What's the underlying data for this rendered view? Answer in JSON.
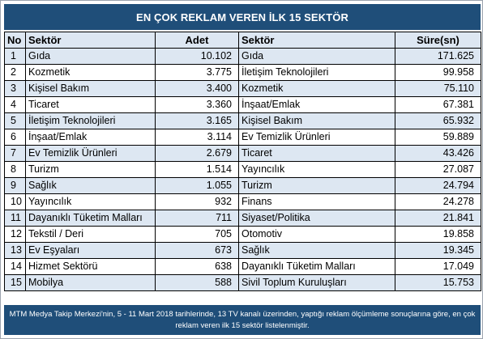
{
  "title": "EN ÇOK REKLAM VEREN İLK 15 SEKTÖR",
  "headers": {
    "no": "No",
    "sektor_left": "Sektör",
    "adet": "Adet",
    "sektor_right": "Sektör",
    "sure": "Süre(sn)"
  },
  "rows": [
    {
      "no": "1",
      "sektor_adet": "Gıda",
      "adet": "10.102",
      "sektor_sure": "Gıda",
      "sure": "171.625"
    },
    {
      "no": "2",
      "sektor_adet": "Kozmetik",
      "adet": "3.775",
      "sektor_sure": "İletişim Teknolojileri",
      "sure": "99.958"
    },
    {
      "no": "3",
      "sektor_adet": "Kişisel Bakım",
      "adet": "3.400",
      "sektor_sure": "Kozmetik",
      "sure": "75.110"
    },
    {
      "no": "4",
      "sektor_adet": "Ticaret",
      "adet": "3.360",
      "sektor_sure": "İnşaat/Emlak",
      "sure": "67.381"
    },
    {
      "no": "5",
      "sektor_adet": "İletişim Teknolojileri",
      "adet": "3.165",
      "sektor_sure": "Kişisel Bakım",
      "sure": "65.932"
    },
    {
      "no": "6",
      "sektor_adet": "İnşaat/Emlak",
      "adet": "3.114",
      "sektor_sure": "Ev Temizlik Ürünleri",
      "sure": "59.889"
    },
    {
      "no": "7",
      "sektor_adet": "Ev Temizlik Ürünleri",
      "adet": "2.679",
      "sektor_sure": "Ticaret",
      "sure": "43.426"
    },
    {
      "no": "8",
      "sektor_adet": "Turizm",
      "adet": "1.514",
      "sektor_sure": "Yayıncılık",
      "sure": "27.087"
    },
    {
      "no": "9",
      "sektor_adet": "Sağlık",
      "adet": "1.055",
      "sektor_sure": "Turizm",
      "sure": "24.794"
    },
    {
      "no": "10",
      "sektor_adet": "Yayıncılık",
      "adet": "932",
      "sektor_sure": "Finans",
      "sure": "24.278"
    },
    {
      "no": "11",
      "sektor_adet": "Dayanıklı Tüketim Malları",
      "adet": "711",
      "sektor_sure": "Siyaset/Politika",
      "sure": "21.841"
    },
    {
      "no": "12",
      "sektor_adet": "Tekstil / Deri",
      "adet": "705",
      "sektor_sure": "Otomotiv",
      "sure": "19.858"
    },
    {
      "no": "13",
      "sektor_adet": "Ev Eşyaları",
      "adet": "673",
      "sektor_sure": "Sağlık",
      "sure": "19.345"
    },
    {
      "no": "14",
      "sektor_adet": "Hizmet Sektörü",
      "adet": "638",
      "sektor_sure": "Dayanıklı Tüketim Malları",
      "sure": "17.049"
    },
    {
      "no": "15",
      "sektor_adet": "Mobilya",
      "adet": "588",
      "sektor_sure": "Sivil Toplum Kuruluşları",
      "sure": "15.753"
    }
  ],
  "footer_note": "MTM Medya Takip Merkezi'nin, 5 - 11 Mart 2018 tarihlerinde, 13 TV kanalı üzerinden,  yaptığı reklam ölçümleme sonuçlarına göre, en çok reklam veren ilk 15 sektör  listelenmiştir.",
  "colors": {
    "header_band": "#1f4e79",
    "stripe": "#dde7f2",
    "border": "#000000"
  }
}
